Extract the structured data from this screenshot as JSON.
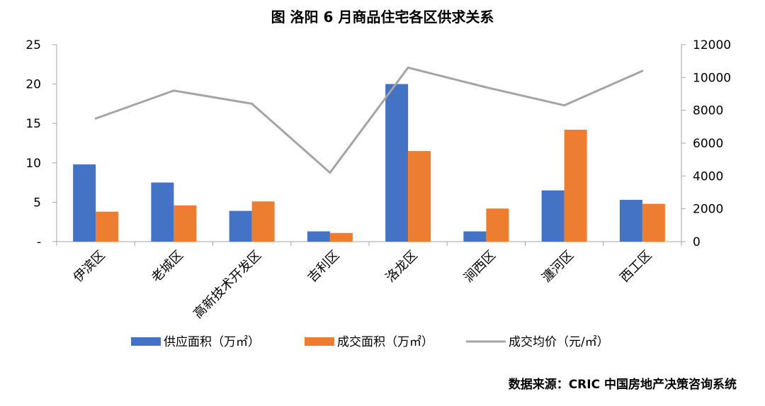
{
  "chart_data": {
    "type": "bar",
    "title": "图  洛阳 6 月商品住宅各区供求关系",
    "categories": [
      "伊滨区",
      "老城区",
      "高新技术开发区",
      "吉利区",
      "洛龙区",
      "涧西区",
      "瀍河区",
      "西工区"
    ],
    "series": [
      {
        "name": "供应面积（万㎡）",
        "type": "bar",
        "axis": "left",
        "color": "#4472C4",
        "values": [
          9.8,
          7.5,
          3.9,
          1.3,
          20.0,
          1.3,
          6.5,
          5.3
        ]
      },
      {
        "name": "成交面积（万㎡）",
        "type": "bar",
        "axis": "left",
        "color": "#ED7D31",
        "values": [
          3.8,
          4.6,
          5.1,
          1.1,
          11.5,
          4.2,
          14.2,
          4.8
        ]
      },
      {
        "name": "成交均价（元/㎡）",
        "type": "line",
        "axis": "right",
        "color": "#A5A5A5",
        "values": [
          7500,
          9200,
          8400,
          4200,
          10600,
          9400,
          8300,
          10400
        ]
      }
    ],
    "y_left": {
      "range": [
        0,
        25
      ],
      "ticks": [
        0,
        5,
        10,
        15,
        20,
        25
      ],
      "tick_labels": [
        "-",
        "5",
        "10",
        "15",
        "20",
        "25"
      ]
    },
    "y_right": {
      "range": [
        0,
        12000
      ],
      "ticks": [
        0,
        2000,
        4000,
        6000,
        8000,
        10000,
        12000
      ],
      "tick_labels": [
        "0",
        "2000",
        "4000",
        "6000",
        "8000",
        "10000",
        "12000"
      ]
    },
    "grid": false,
    "legend_position": "bottom"
  },
  "source_note": "数据来源：CRIC 中国房地产决策咨询系统"
}
